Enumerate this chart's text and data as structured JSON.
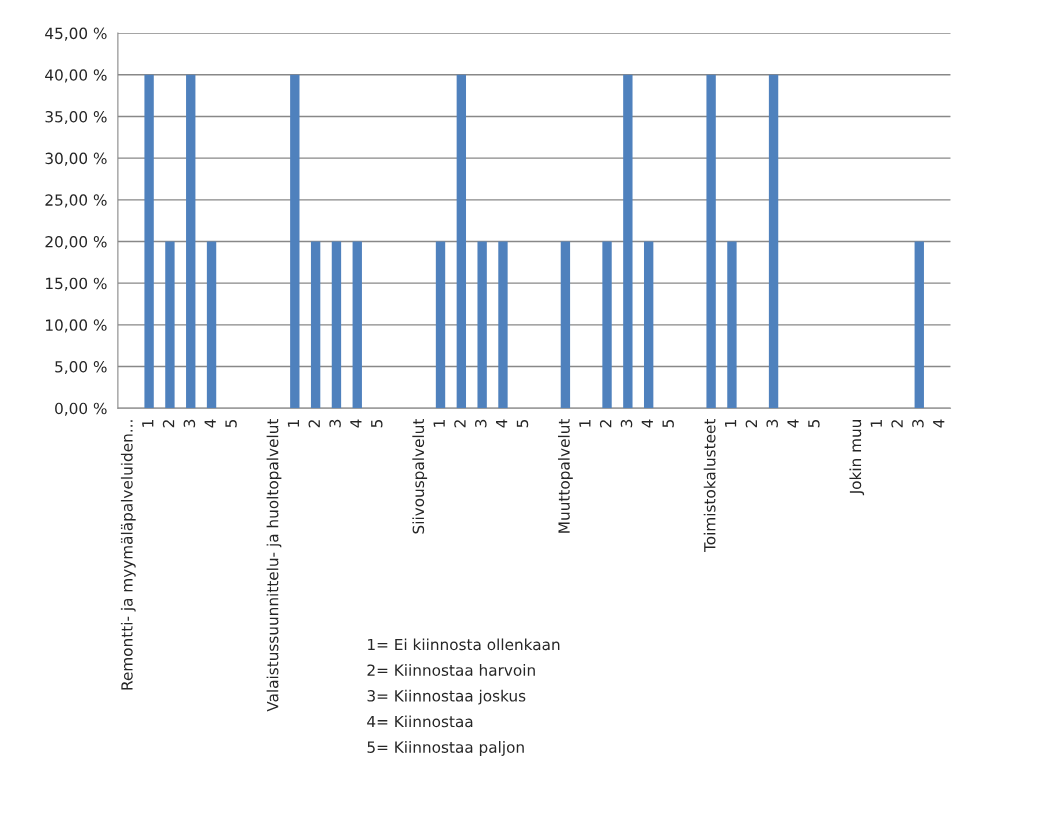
{
  "chart_data": {
    "type": "bar",
    "categories": [
      "Remontti- ja myymäläpalveluiden...",
      "1",
      "2",
      "3",
      "4",
      "5",
      null,
      "Valaistussuunnittelu- ja huoltopalvelut",
      "1",
      "2",
      "3",
      "4",
      "5",
      null,
      "Siivouspalvelut",
      "1",
      "2",
      "3",
      "4",
      "5",
      null,
      "Muuttopalvelut",
      "1",
      "2",
      "3",
      "4",
      "5",
      null,
      "Toimistokalusteet",
      "1",
      "2",
      "3",
      "4",
      "5",
      null,
      "Jokin muu",
      "1",
      "2",
      "3",
      "4"
    ],
    "values": [
      null,
      40,
      20,
      40,
      20,
      null,
      null,
      null,
      40,
      20,
      20,
      20,
      null,
      null,
      null,
      20,
      40,
      20,
      20,
      null,
      null,
      20,
      null,
      20,
      40,
      20,
      null,
      null,
      40,
      20,
      null,
      40,
      null,
      null,
      null,
      null,
      null,
      null,
      20,
      null
    ],
    "color": "#4f81bd",
    "ylim": [
      0,
      45
    ],
    "yticks": [
      {
        "value": 0,
        "label": "0,00 %"
      },
      {
        "value": 5,
        "label": "5,00 %"
      },
      {
        "value": 10,
        "label": "10,00 %"
      },
      {
        "value": 15,
        "label": "15,00 %"
      },
      {
        "value": 20,
        "label": "20,00 %"
      },
      {
        "value": 25,
        "label": "25,00 %"
      },
      {
        "value": 30,
        "label": "30,00 %"
      },
      {
        "value": 35,
        "label": "35,00 %"
      },
      {
        "value": 40,
        "label": "40,00 %"
      },
      {
        "value": 45,
        "label": "45,00 %"
      }
    ],
    "grid": "y",
    "annotations": [
      "1= Ei kiinnosta ollenkaan",
      "2= Kiinnostaa harvoin",
      "3= Kiinnostaa joskus",
      "4= Kiinnostaa",
      "5= Kiinnostaa paljon"
    ]
  }
}
